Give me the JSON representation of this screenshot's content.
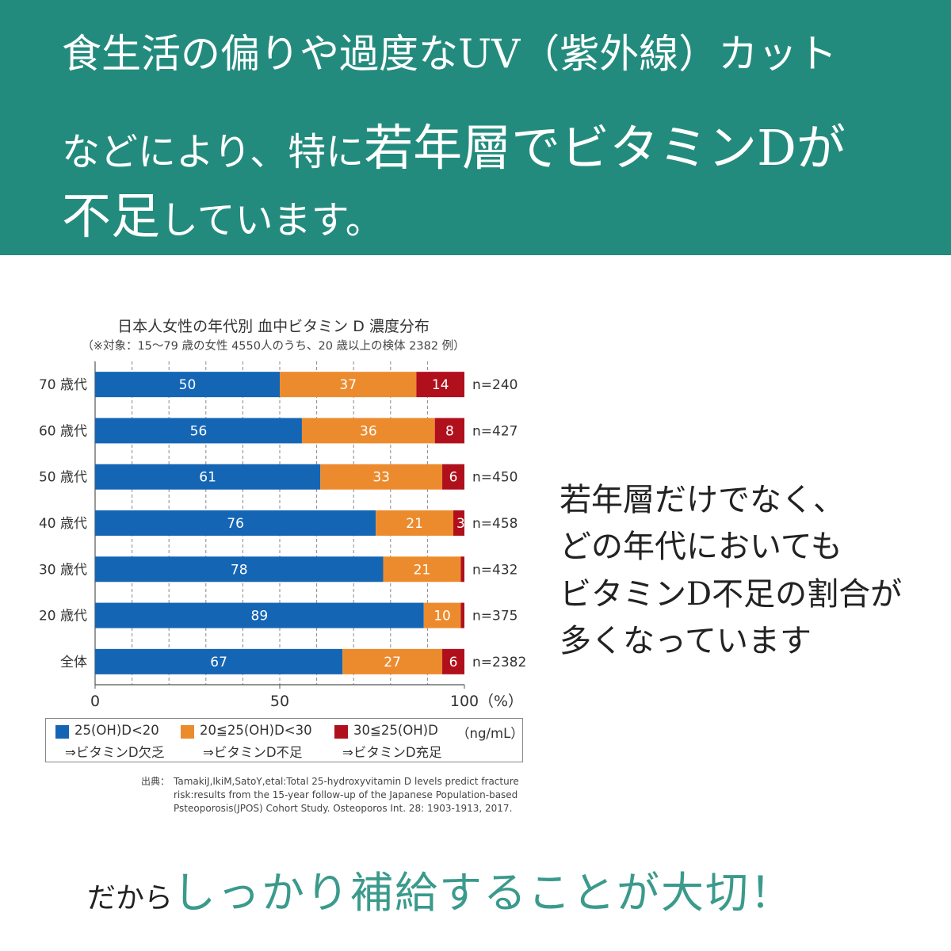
{
  "header": {
    "line1": "食生活の偏りや過度なUV（紫外線）カット",
    "line2_a": "などにより、特に",
    "line2_b": "若年層でビタミンD",
    "line2_c": "が",
    "line3_a": "不足",
    "line3_b": "しています。"
  },
  "chart_data": {
    "type": "bar",
    "orientation": "horizontal",
    "stacked": true,
    "title": "日本人女性の年代別 血中ビタミン D 濃度分布",
    "subtitle": "（※対象：15〜79 歳の女性 4550人のうち、20 歳以上の検体 2382 例）",
    "categories": [
      "70 歳代",
      "60 歳代",
      "50 歳代",
      "40 歳代",
      "30 歳代",
      "20 歳代",
      "全体"
    ],
    "n_labels": [
      "n=240",
      "n=427",
      "n=450",
      "n=458",
      "n=432",
      "n=375",
      "n=2382"
    ],
    "series": [
      {
        "name": "25(OH)D<20",
        "values": [
          50,
          56,
          61,
          76,
          78,
          89,
          67
        ],
        "color": "#1565b5"
      },
      {
        "name": "20≦25(OH)D<30",
        "values": [
          37,
          36,
          33,
          21,
          21,
          10,
          27
        ],
        "color": "#ec8b2e"
      },
      {
        "name": "30≦25(OH)D",
        "values": [
          14,
          8,
          6,
          3,
          1,
          1,
          6
        ],
        "color": "#b0101c"
      }
    ],
    "xlim": [
      0,
      100
    ],
    "xticks": [
      "0",
      "50",
      "100"
    ],
    "xunit": "（%）",
    "grid": "dashed vertical",
    "legend_unit": "（ng/mL）",
    "legend_notes": [
      "⇒ビタミンD欠乏",
      "⇒ビタミンD不足",
      "⇒ビタミンD充足"
    ]
  },
  "source": {
    "label": "出典：",
    "line1": "TamakiJ,IkiM,SatoY,etal:Total 25-hydroxyvitamin D levels predict fracture",
    "line2": "risk:results from the 15-year follow-up of the Japanese Population-based",
    "line3": "Psteoporosis(JPOS) Cohort Study. Osteoporos Int. 28: 1903-1913, 2017."
  },
  "side_text": [
    "若年層だけでなく、",
    "どの年代においても",
    "ビタミンD不足の割合が",
    "多くなっています"
  ],
  "footer": {
    "prefix": "だから",
    "main": "しっかり補給することが大切！"
  }
}
